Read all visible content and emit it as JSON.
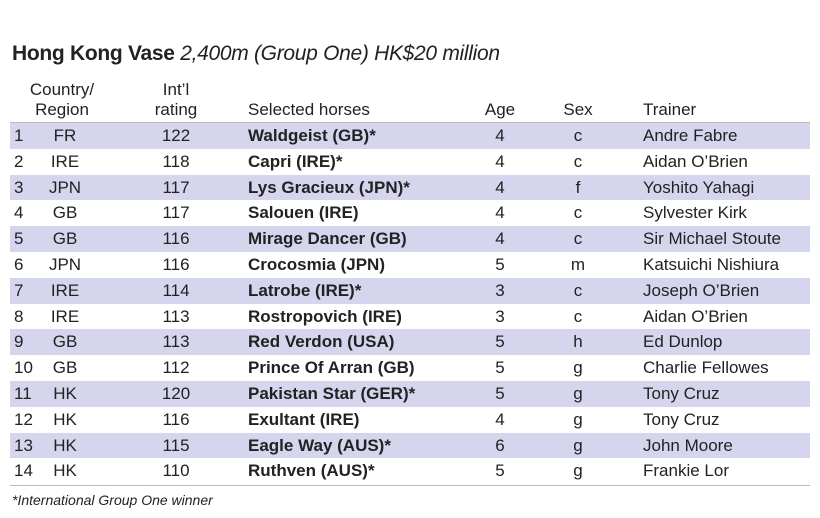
{
  "title": {
    "bold": "Hong Kong Vase",
    "rest": "2,400m (Group One) HK$20 million"
  },
  "headers": [
    [
      "Country/",
      "Region"
    ],
    [
      "Int’l",
      "rating"
    ],
    [
      "Selected horses"
    ],
    [
      "Age"
    ],
    [
      "Sex"
    ],
    [
      "Trainer"
    ]
  ],
  "rows": [
    [
      1,
      "FR",
      122,
      "Waldgeist (GB)*",
      4,
      "c",
      "Andre Fabre"
    ],
    [
      2,
      "IRE",
      118,
      "Capri (IRE)*",
      4,
      "c",
      "Aidan O’Brien"
    ],
    [
      3,
      "JPN",
      117,
      "Lys Gracieux (JPN)*",
      4,
      "f",
      "Yoshito Yahagi"
    ],
    [
      4,
      "GB",
      117,
      "Salouen (IRE)",
      4,
      "c",
      "Sylvester Kirk"
    ],
    [
      5,
      "GB",
      116,
      "Mirage Dancer (GB)",
      4,
      "c",
      "Sir Michael Stoute"
    ],
    [
      6,
      "JPN",
      116,
      "Crocosmia (JPN)",
      5,
      "m",
      "Katsuichi Nishiura"
    ],
    [
      7,
      "IRE",
      114,
      "Latrobe (IRE)*",
      3,
      "c",
      "Joseph O’Brien"
    ],
    [
      8,
      "IRE",
      113,
      "Rostropovich (IRE)",
      3,
      "c",
      "Aidan O’Brien"
    ],
    [
      9,
      "GB",
      113,
      "Red Verdon (USA)",
      5,
      "h",
      "Ed Dunlop"
    ],
    [
      10,
      "GB",
      112,
      "Prince Of Arran (GB)",
      5,
      "g",
      "Charlie Fellowes"
    ],
    [
      11,
      "HK",
      120,
      "Pakistan Star (GER)*",
      5,
      "g",
      "Tony Cruz"
    ],
    [
      12,
      "HK",
      116,
      "Exultant (IRE)",
      4,
      "g",
      "Tony Cruz"
    ],
    [
      13,
      "HK",
      115,
      "Eagle Way (AUS)*",
      6,
      "g",
      "John Moore"
    ],
    [
      14,
      "HK",
      110,
      "Ruthven (AUS)*",
      5,
      "g",
      "Frankie Lor"
    ]
  ],
  "footnote": "*International Group One winner"
}
